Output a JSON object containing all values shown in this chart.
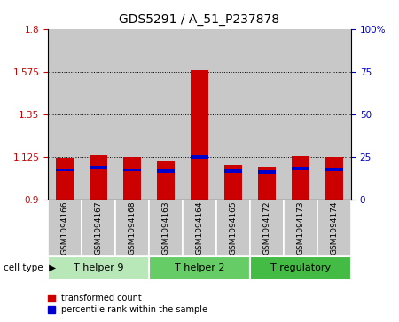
{
  "title": "GDS5291 / A_51_P237878",
  "samples": [
    "GSM1094166",
    "GSM1094167",
    "GSM1094168",
    "GSM1094163",
    "GSM1094164",
    "GSM1094165",
    "GSM1094172",
    "GSM1094173",
    "GSM1094174"
  ],
  "transformed_count": [
    1.12,
    1.135,
    1.125,
    1.105,
    1.585,
    1.085,
    1.075,
    1.13,
    1.125
  ],
  "percentile_rank_mapped": [
    1.057,
    1.068,
    1.057,
    1.048,
    1.125,
    1.048,
    1.044,
    1.065,
    1.06
  ],
  "base": 0.9,
  "ylim_left": [
    0.9,
    1.8
  ],
  "ylim_right": [
    0,
    100
  ],
  "yticks_left": [
    0.9,
    1.125,
    1.35,
    1.575,
    1.8
  ],
  "yticks_right": [
    0,
    25,
    50,
    75,
    100
  ],
  "ytick_labels_left": [
    "0.9",
    "1.125",
    "1.35",
    "1.575",
    "1.8"
  ],
  "ytick_labels_right": [
    "0",
    "25",
    "50",
    "75",
    "100%"
  ],
  "cell_groups": [
    {
      "label": "T helper 9",
      "indices": [
        0,
        1,
        2
      ],
      "color": "#b8e8b8"
    },
    {
      "label": "T helper 2",
      "indices": [
        3,
        4,
        5
      ],
      "color": "#66cc66"
    },
    {
      "label": "T regulatory",
      "indices": [
        6,
        7,
        8
      ],
      "color": "#44bb44"
    }
  ],
  "bar_color_red": "#cc0000",
  "bar_color_blue": "#0000cc",
  "bar_width": 0.55,
  "bar_bg_color": "#c8c8c8",
  "legend_labels": [
    "transformed count",
    "percentile rank within the sample"
  ],
  "legend_colors": [
    "#cc0000",
    "#0000cc"
  ],
  "cell_type_label": "cell type",
  "blue_bar_height": 0.018
}
